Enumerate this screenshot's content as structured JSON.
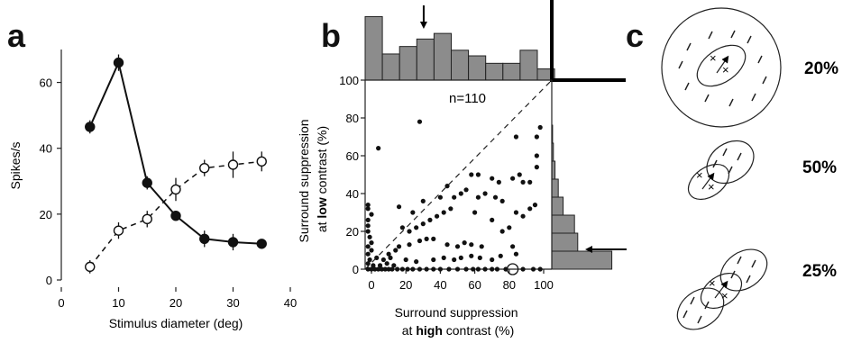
{
  "panel_labels": [
    "a",
    "b",
    "c"
  ],
  "chart_data": [
    {
      "panel": "a",
      "type": "line",
      "xlabel": "Stimulus diameter (deg)",
      "ylabel": "Spikes/s",
      "xlim": [
        0,
        40
      ],
      "ylim": [
        0,
        70
      ],
      "xticks": [
        0,
        10,
        20,
        30,
        40
      ],
      "yticks": [
        0,
        20,
        40,
        60
      ],
      "x": [
        5,
        10,
        15,
        20,
        25,
        30,
        35
      ],
      "series": [
        {
          "style": "filled-circles-solid-line",
          "values": [
            46.5,
            66,
            29.5,
            19.5,
            12.5,
            11.5,
            11
          ],
          "errors": [
            2,
            2.5,
            2,
            1.5,
            2.5,
            2.5,
            1
          ]
        },
        {
          "style": "open-circles-dashed-line",
          "values": [
            4,
            15,
            18.5,
            27.5,
            34,
            35,
            36
          ],
          "errors": [
            2,
            2.5,
            2.5,
            3.5,
            2.5,
            4,
            3
          ]
        }
      ]
    },
    {
      "panel": "b",
      "type": "scatter",
      "xlabel_line1": "Surround suppression",
      "xlabel_line2_pre": "at ",
      "xlabel_line2_bold": "high",
      "xlabel_line2_post": " contrast (%)",
      "ylabel_line1": "Surround suppression",
      "ylabel_line2_pre": "at ",
      "ylabel_line2_bold": "low",
      "ylabel_line2_post": " contrast (%)",
      "annotation": "n=110",
      "xlim": [
        -5,
        110
      ],
      "ylim": [
        0,
        100
      ],
      "xticks": [
        0,
        20,
        40,
        60,
        80,
        100
      ],
      "yticks": [
        0,
        20,
        40,
        60,
        80,
        100
      ],
      "diagonal": true,
      "circled_point": [
        82,
        0
      ],
      "points": [
        [
          -2,
          0
        ],
        [
          0,
          0
        ],
        [
          2,
          0
        ],
        [
          4,
          0
        ],
        [
          6,
          0
        ],
        [
          8,
          0
        ],
        [
          10,
          0
        ],
        [
          12,
          0
        ],
        [
          15,
          0
        ],
        [
          18,
          0
        ],
        [
          21,
          0
        ],
        [
          24,
          0
        ],
        [
          28,
          0
        ],
        [
          32,
          0
        ],
        [
          36,
          0
        ],
        [
          40,
          0
        ],
        [
          45,
          0
        ],
        [
          50,
          0
        ],
        [
          55,
          0
        ],
        [
          59,
          0
        ],
        [
          62,
          0
        ],
        [
          66,
          0
        ],
        [
          70,
          0
        ],
        [
          73,
          0
        ],
        [
          78,
          0
        ],
        [
          88,
          0
        ],
        [
          94,
          0
        ],
        [
          98,
          0
        ],
        [
          -2,
          3
        ],
        [
          1,
          2
        ],
        [
          5,
          2
        ],
        [
          9,
          3
        ],
        [
          13,
          2
        ],
        [
          -1,
          5
        ],
        [
          3,
          6
        ],
        [
          7,
          5
        ],
        [
          11,
          6
        ],
        [
          -2,
          8
        ],
        [
          0,
          10
        ],
        [
          -2,
          12
        ],
        [
          0,
          14
        ],
        [
          -1,
          17
        ],
        [
          -2,
          20
        ],
        [
          -2,
          23
        ],
        [
          -2,
          26
        ],
        [
          0,
          29
        ],
        [
          -2,
          32
        ],
        [
          -2,
          34
        ],
        [
          10,
          8
        ],
        [
          14,
          10
        ],
        [
          16,
          12
        ],
        [
          22,
          13
        ],
        [
          28,
          15
        ],
        [
          32,
          16
        ],
        [
          36,
          16
        ],
        [
          44,
          13
        ],
        [
          50,
          12
        ],
        [
          54,
          14
        ],
        [
          58,
          13
        ],
        [
          64,
          12
        ],
        [
          20,
          5
        ],
        [
          26,
          4
        ],
        [
          36,
          5
        ],
        [
          42,
          6
        ],
        [
          48,
          5
        ],
        [
          52,
          6
        ],
        [
          58,
          7
        ],
        [
          63,
          6
        ],
        [
          70,
          5
        ],
        [
          75,
          7
        ],
        [
          18,
          22
        ],
        [
          22,
          20
        ],
        [
          26,
          22
        ],
        [
          30,
          24
        ],
        [
          34,
          26
        ],
        [
          38,
          28
        ],
        [
          42,
          30
        ],
        [
          46,
          32
        ],
        [
          40,
          38
        ],
        [
          44,
          44
        ],
        [
          48,
          38
        ],
        [
          52,
          40
        ],
        [
          55,
          42
        ],
        [
          24,
          30
        ],
        [
          30,
          36
        ],
        [
          16,
          33
        ],
        [
          62,
          38
        ],
        [
          66,
          40
        ],
        [
          72,
          38
        ],
        [
          70,
          26
        ],
        [
          76,
          36
        ],
        [
          80,
          22
        ],
        [
          84,
          30
        ],
        [
          88,
          28
        ],
        [
          92,
          32
        ],
        [
          74,
          46
        ],
        [
          82,
          48
        ],
        [
          88,
          46
        ],
        [
          62,
          50
        ],
        [
          58,
          50
        ],
        [
          70,
          48
        ],
        [
          86,
          50
        ],
        [
          92,
          46
        ],
        [
          95,
          34
        ],
        [
          84,
          8
        ],
        [
          82,
          12
        ],
        [
          76,
          20
        ],
        [
          96,
          54
        ],
        [
          4,
          64
        ],
        [
          28,
          78
        ],
        [
          84,
          70
        ],
        [
          96,
          60
        ],
        [
          98,
          75
        ],
        [
          60,
          30
        ],
        [
          96,
          70
        ]
      ]
    },
    {
      "panel": "b-top",
      "type": "bar",
      "categories": [
        "0-10",
        "10-20",
        "20-30",
        "30-40",
        "40-50",
        "50-60",
        "60-70",
        "70-80",
        "80-90",
        "90-100",
        "100-110"
      ],
      "values": [
        17,
        7,
        9,
        11,
        12.5,
        8,
        6.5,
        4.5,
        4.5,
        8,
        3
      ],
      "ylim": [
        0,
        20
      ],
      "arrow_at": 34
    },
    {
      "panel": "b-right",
      "type": "bar",
      "orientation": "horizontal",
      "categories": [
        "0-10",
        "10-20",
        "20-30",
        "30-40",
        "40-50",
        "50-60",
        "60-70",
        "70-80"
      ],
      "values": [
        37,
        16,
        14,
        7,
        4,
        2,
        1,
        0.5
      ],
      "xlim": [
        0,
        40
      ],
      "arrow_at": 11
    },
    {
      "panel": "c",
      "type": "diagram",
      "percentages": [
        "20%",
        "50%",
        "25%"
      ]
    }
  ]
}
